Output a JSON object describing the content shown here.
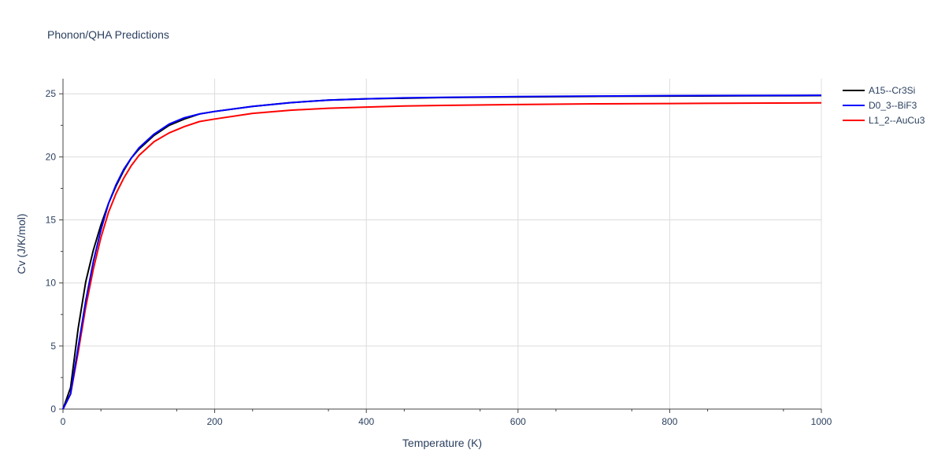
{
  "title": "Phonon/QHA Predictions",
  "chart_data": {
    "type": "line",
    "title": "Phonon/QHA Predictions",
    "xlabel": "Temperature (K)",
    "ylabel": "Cv (J/K/mol)",
    "xlim": [
      0,
      1000
    ],
    "ylim": [
      0,
      26.2
    ],
    "x_ticks": [
      0,
      200,
      400,
      600,
      800,
      1000
    ],
    "y_ticks": [
      0,
      5,
      10,
      15,
      20,
      25
    ],
    "grid": true,
    "legend_position": "top-right",
    "series": [
      {
        "name": "A15--Cr3Si",
        "color": "#000000",
        "x": [
          0,
          10,
          20,
          30,
          40,
          50,
          60,
          70,
          80,
          90,
          100,
          120,
          140,
          160,
          180,
          200,
          250,
          300,
          350,
          400,
          450,
          500,
          600,
          700,
          800,
          900,
          1000
        ],
        "y": [
          0,
          1.7,
          6.4,
          10.1,
          12.6,
          14.6,
          16.3,
          17.7,
          18.9,
          19.9,
          20.6,
          21.7,
          22.5,
          23.0,
          23.4,
          23.6,
          24.0,
          24.3,
          24.5,
          24.6,
          24.65,
          24.7,
          24.75,
          24.8,
          24.82,
          24.84,
          24.86
        ]
      },
      {
        "name": "D0_3--BiF3",
        "color": "#0000ff",
        "x": [
          0,
          10,
          20,
          30,
          40,
          50,
          60,
          70,
          80,
          90,
          100,
          120,
          140,
          160,
          180,
          200,
          250,
          300,
          350,
          400,
          450,
          500,
          600,
          700,
          800,
          900,
          1000
        ],
        "y": [
          0,
          1.2,
          4.9,
          8.6,
          11.7,
          14.2,
          16.3,
          17.8,
          19.0,
          19.9,
          20.7,
          21.8,
          22.6,
          23.1,
          23.4,
          23.6,
          24.0,
          24.3,
          24.5,
          24.6,
          24.68,
          24.72,
          24.78,
          24.82,
          24.85,
          24.87,
          24.88
        ]
      },
      {
        "name": "L1_2--AuCu3",
        "color": "#ff0000",
        "x": [
          0,
          10,
          20,
          30,
          40,
          50,
          60,
          70,
          80,
          90,
          100,
          120,
          140,
          160,
          180,
          200,
          250,
          300,
          350,
          400,
          450,
          500,
          600,
          700,
          800,
          900,
          1000
        ],
        "y": [
          0,
          1.2,
          4.5,
          8.1,
          11.1,
          13.6,
          15.6,
          17.1,
          18.3,
          19.3,
          20.1,
          21.2,
          21.9,
          22.4,
          22.8,
          23.0,
          23.45,
          23.7,
          23.85,
          23.95,
          24.03,
          24.08,
          24.15,
          24.2,
          24.23,
          24.26,
          24.28
        ]
      }
    ]
  }
}
